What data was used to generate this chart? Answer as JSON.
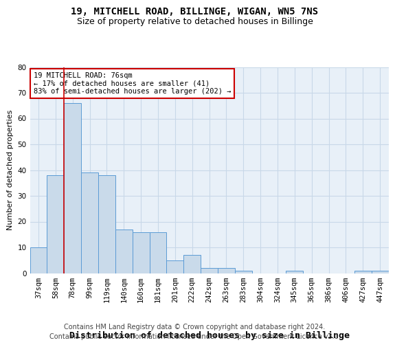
{
  "title1": "19, MITCHELL ROAD, BILLINGE, WIGAN, WN5 7NS",
  "title2": "Size of property relative to detached houses in Billinge",
  "xlabel": "Distribution of detached houses by size in Billinge",
  "ylabel": "Number of detached properties",
  "categories": [
    "37sqm",
    "58sqm",
    "78sqm",
    "99sqm",
    "119sqm",
    "140sqm",
    "160sqm",
    "181sqm",
    "201sqm",
    "222sqm",
    "242sqm",
    "263sqm",
    "283sqm",
    "304sqm",
    "324sqm",
    "345sqm",
    "365sqm",
    "386sqm",
    "406sqm",
    "427sqm",
    "447sqm"
  ],
  "values": [
    10,
    38,
    66,
    39,
    38,
    17,
    16,
    16,
    5,
    7,
    2,
    2,
    1,
    0,
    0,
    1,
    0,
    0,
    0,
    1,
    1
  ],
  "bar_color": "#c9daea",
  "bar_edge_color": "#5b9bd5",
  "highlight_line_color": "#cc0000",
  "highlight_line_bar_index": 2,
  "annotation_line1": "19 MITCHELL ROAD: 76sqm",
  "annotation_line2": "← 17% of detached houses are smaller (41)",
  "annotation_line3": "83% of semi-detached houses are larger (202) →",
  "annotation_box_color": "#cc0000",
  "ylim": [
    0,
    80
  ],
  "yticks": [
    0,
    10,
    20,
    30,
    40,
    50,
    60,
    70,
    80
  ],
  "grid_color": "#c8d8e8",
  "bg_color": "#e8f0f8",
  "footer_line1": "Contains HM Land Registry data © Crown copyright and database right 2024.",
  "footer_line2": "Contains public sector information licensed under the Open Government Licence v3.0.",
  "title1_fontsize": 10,
  "title2_fontsize": 9,
  "xlabel_fontsize": 9.5,
  "ylabel_fontsize": 8,
  "tick_fontsize": 7.5,
  "annot_fontsize": 7.5,
  "footer_fontsize": 7
}
